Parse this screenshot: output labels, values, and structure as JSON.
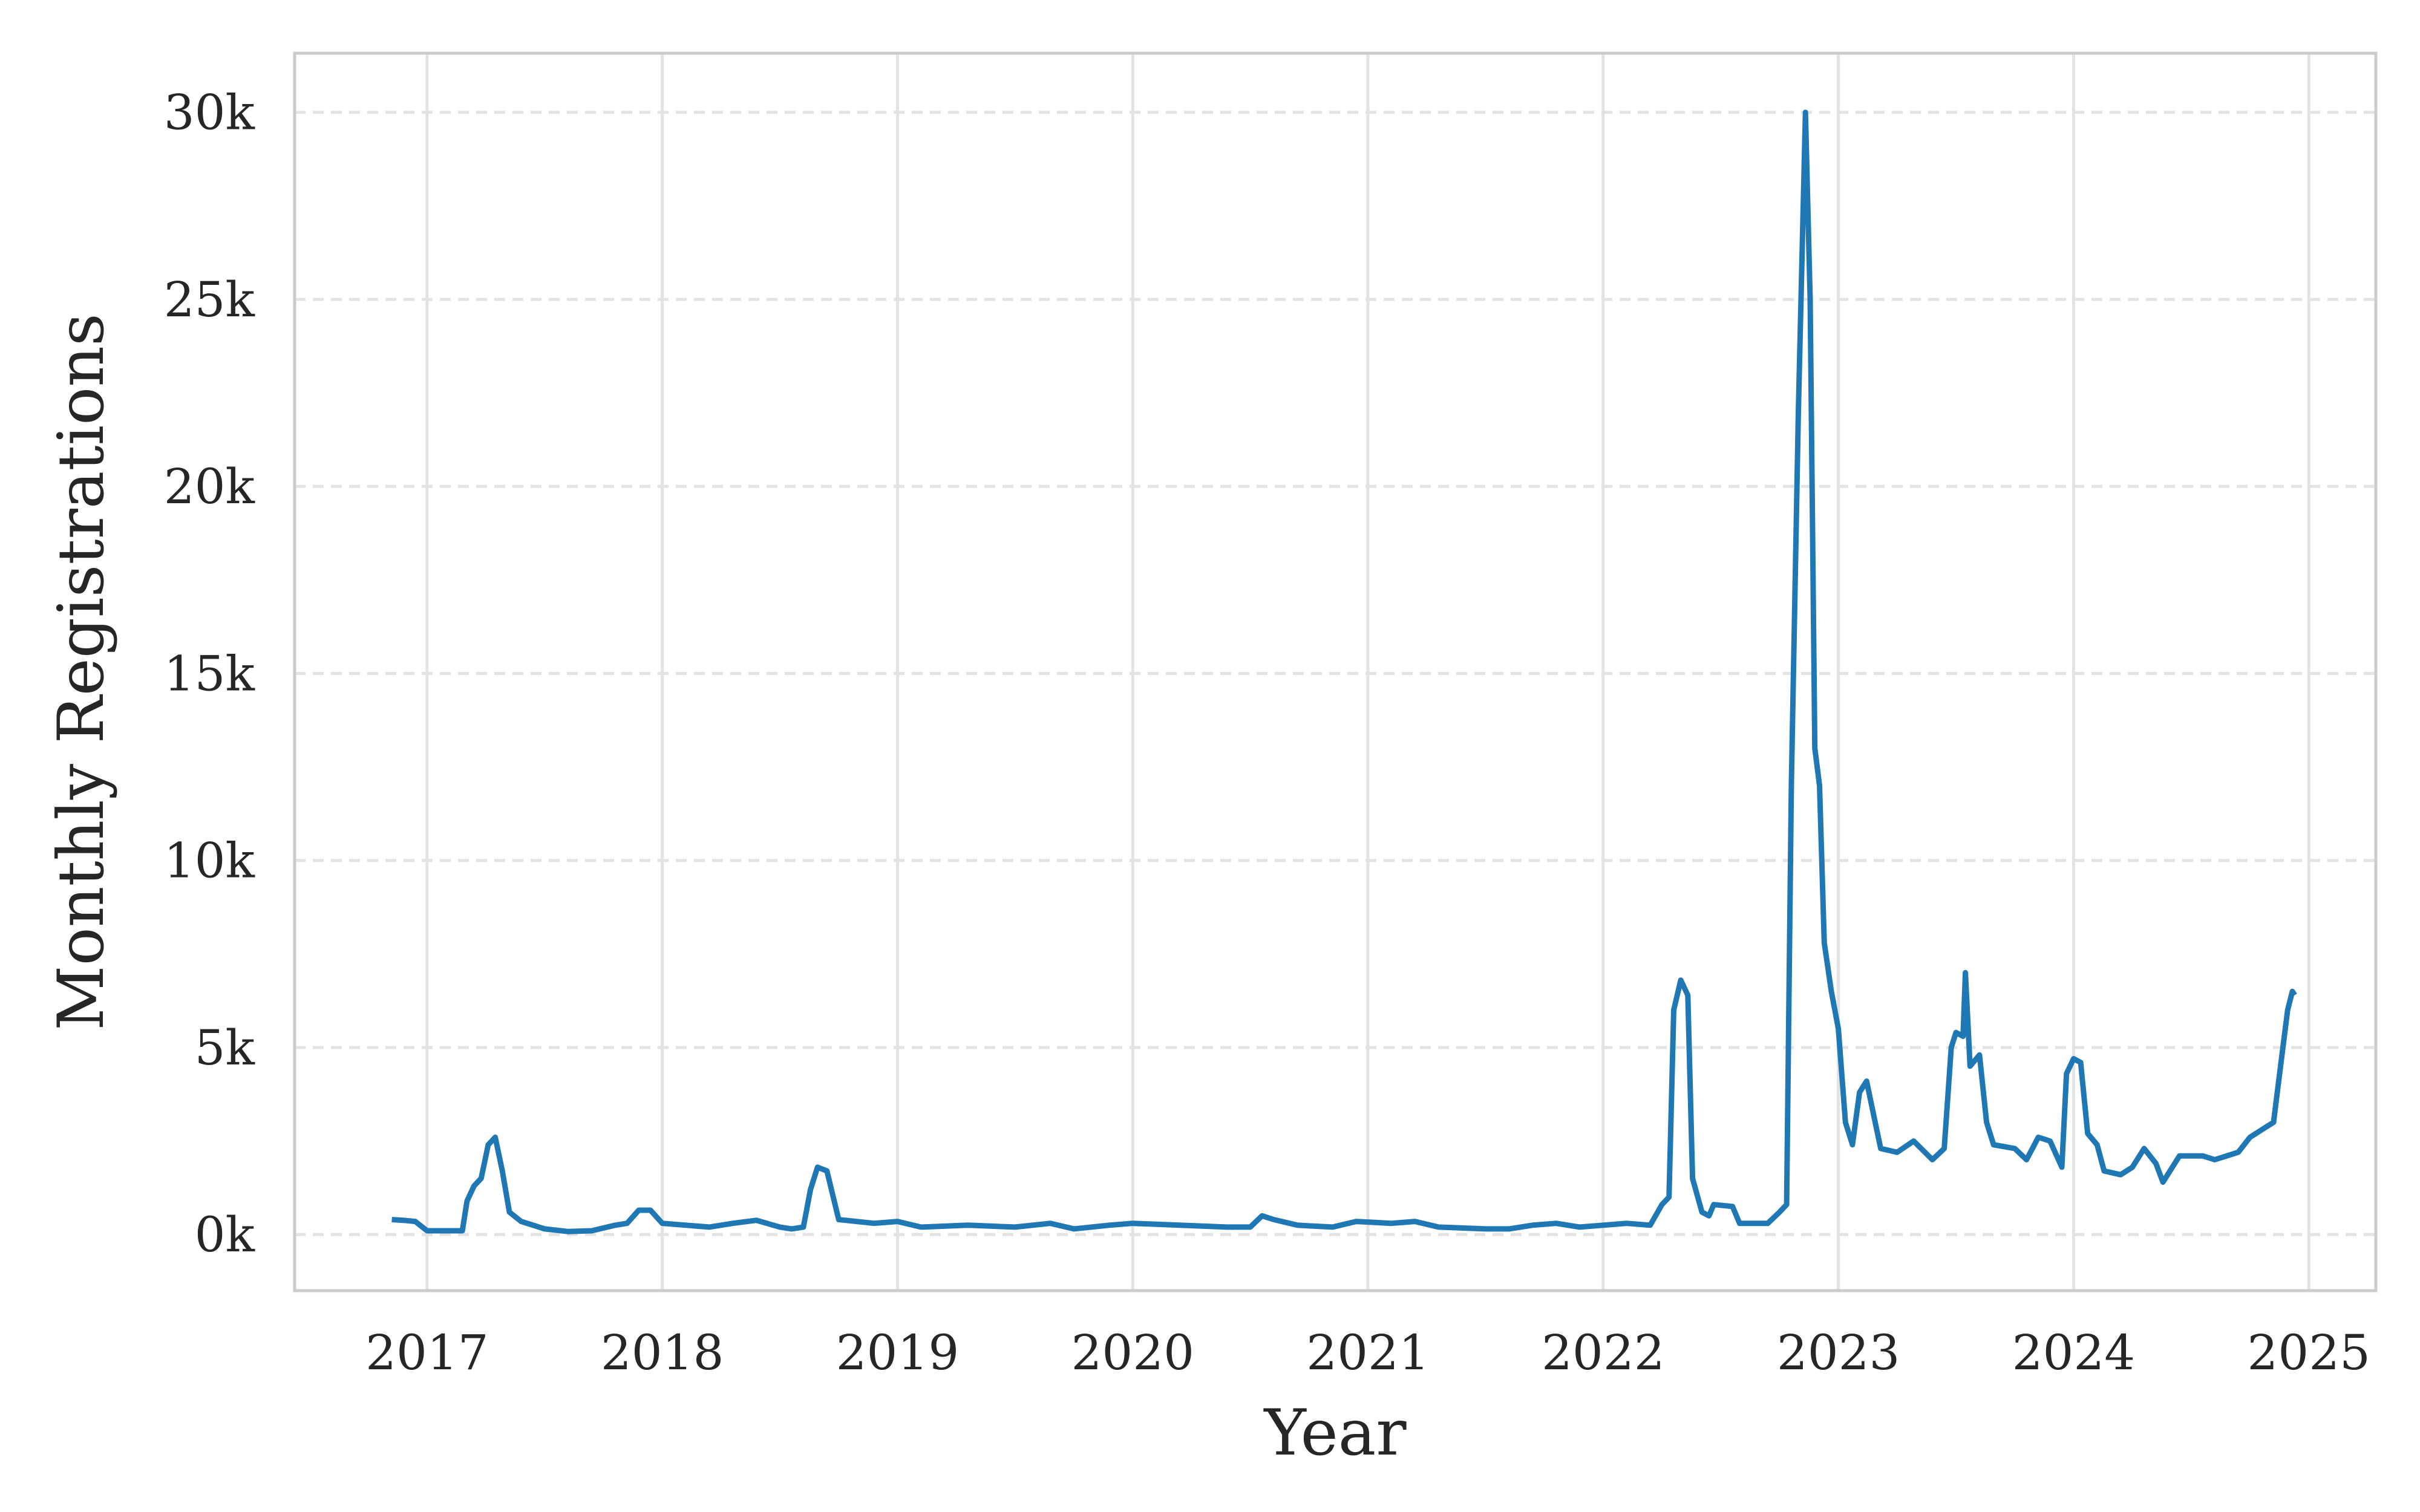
{
  "chart_data": {
    "type": "line",
    "x_label": "Year",
    "y_label": "Monthly Registrations",
    "x": [
      2016.85,
      2016.9,
      2016.95,
      2017.0,
      2017.1,
      2017.15,
      2017.17,
      2017.2,
      2017.23,
      2017.26,
      2017.29,
      2017.32,
      2017.35,
      2017.4,
      2017.5,
      2017.6,
      2017.7,
      2017.8,
      2017.85,
      2017.9,
      2017.95,
      2018.0,
      2018.1,
      2018.2,
      2018.3,
      2018.4,
      2018.5,
      2018.55,
      2018.6,
      2018.63,
      2018.66,
      2018.7,
      2018.75,
      2018.9,
      2019.0,
      2019.1,
      2019.3,
      2019.5,
      2019.65,
      2019.75,
      2019.9,
      2020.0,
      2020.2,
      2020.4,
      2020.5,
      2020.55,
      2020.6,
      2020.7,
      2020.85,
      2020.95,
      2021.1,
      2021.2,
      2021.3,
      2021.5,
      2021.6,
      2021.7,
      2021.8,
      2021.9,
      2022.0,
      2022.1,
      2022.2,
      2022.25,
      2022.28,
      2022.3,
      2022.33,
      2022.36,
      2022.38,
      2022.42,
      2022.45,
      2022.47,
      2022.55,
      2022.58,
      2022.7,
      2022.75,
      2022.78,
      2022.8,
      2022.83,
      2022.86,
      2022.88,
      2022.9,
      2022.92,
      2022.94,
      2022.97,
      2023.0,
      2023.03,
      2023.06,
      2023.09,
      2023.12,
      2023.15,
      2023.18,
      2023.25,
      2023.32,
      2023.4,
      2023.45,
      2023.48,
      2023.5,
      2023.53,
      2023.54,
      2023.56,
      2023.6,
      2023.63,
      2023.66,
      2023.75,
      2023.8,
      2023.85,
      2023.9,
      2023.95,
      2023.97,
      2024.0,
      2024.03,
      2024.06,
      2024.1,
      2024.13,
      2024.2,
      2024.25,
      2024.3,
      2024.35,
      2024.38,
      2024.45,
      2024.55,
      2024.6,
      2024.7,
      2024.75,
      2024.8,
      2024.85,
      2024.88,
      2024.91,
      2024.93,
      2024.94
    ],
    "series": [
      {
        "color": "#1f77b4",
        "values": [
          400,
          380,
          350,
          100,
          100,
          100,
          900,
          1300,
          1500,
          2400,
          2600,
          1700,
          600,
          350,
          150,
          80,
          100,
          250,
          300,
          650,
          650,
          300,
          250,
          200,
          300,
          380,
          200,
          150,
          200,
          1200,
          1800,
          1700,
          400,
          300,
          350,
          200,
          250,
          200,
          300,
          150,
          250,
          300,
          250,
          200,
          200,
          500,
          400,
          250,
          200,
          350,
          300,
          350,
          200,
          150,
          150,
          250,
          300,
          200,
          250,
          300,
          250,
          800,
          1000,
          6000,
          6800,
          6400,
          1500,
          600,
          500,
          800,
          750,
          300,
          300,
          600,
          800,
          12000,
          22000,
          30000,
          25000,
          13000,
          12000,
          7800,
          6500,
          5500,
          3000,
          2400,
          3800,
          4100,
          3200,
          2300,
          2200,
          2500,
          2000,
          2300,
          5000,
          5400,
          5300,
          7000,
          4500,
          4800,
          3000,
          2400,
          2300,
          2000,
          2600,
          2500,
          1800,
          4300,
          4700,
          4600,
          2700,
          2400,
          1700,
          1600,
          1800,
          2300,
          1900,
          1400,
          2100,
          2100,
          2000,
          2200,
          2600,
          2800,
          3000,
          4500,
          6000,
          6500,
          6400
        ]
      }
    ],
    "xlim": [
      2016.437,
      2025.285
    ],
    "xticks": [
      2017,
      2018,
      2019,
      2020,
      2021,
      2022,
      2023,
      2024,
      2025
    ],
    "ylim": [
      -1500,
      31580
    ],
    "yticks": [
      {
        "value": 0,
        "label": "0k"
      },
      {
        "value": 5000,
        "label": "5k"
      },
      {
        "value": 10000,
        "label": "10k"
      },
      {
        "value": 15000,
        "label": "15k"
      },
      {
        "value": 20000,
        "label": "20k"
      },
      {
        "value": 25000,
        "label": "25k"
      },
      {
        "value": 30000,
        "label": "30k"
      }
    ],
    "grid": true
  }
}
